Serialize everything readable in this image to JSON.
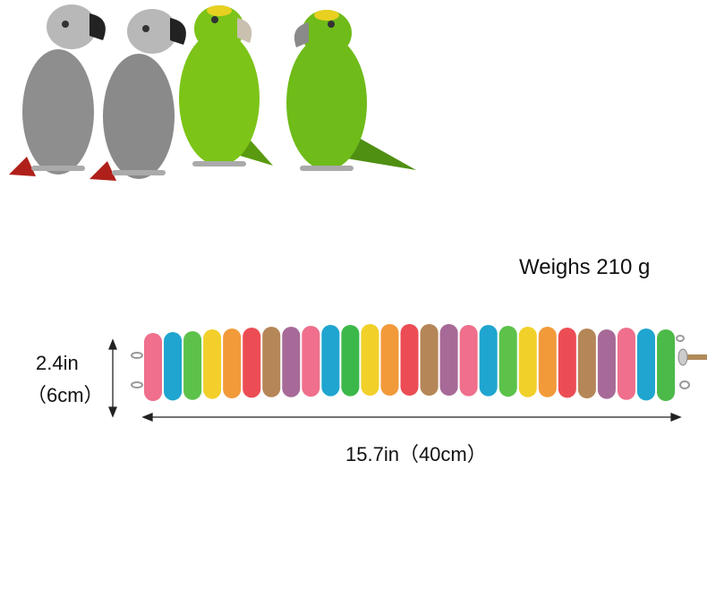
{
  "weight_label": "Weighs 210 g",
  "height_label_in": "2.4in",
  "height_label_cm": "（6cm）",
  "width_label": "15.7in（40cm）",
  "birds": [
    {
      "kind": "grey-parrot",
      "body": "#8e8e8e",
      "beak": "#222222",
      "tail": "#b0201a"
    },
    {
      "kind": "grey-parrot",
      "body": "#8a8a8a",
      "beak": "#222222",
      "tail": "#b0201a"
    },
    {
      "kind": "amazon-parrot",
      "body": "#7cc418",
      "beak": "#c9c0b0",
      "tail": "#5a9a10"
    },
    {
      "kind": "amazon-parrot",
      "body": "#6fbb1a",
      "beak": "#8a8a8a",
      "tail": "#4f8f12"
    }
  ],
  "stick_colors": [
    "#ef6f8c",
    "#1fa5cf",
    "#5cc24a",
    "#f2cf2a",
    "#f29a3a",
    "#ec4d55",
    "#b58657",
    "#a76a98",
    "#ef6f8c",
    "#1fa5cf",
    "#3cb84a",
    "#f2d02a",
    "#f29a3a",
    "#ec4d55",
    "#b58657",
    "#a76a98",
    "#ef6f8c",
    "#1fa5cf",
    "#5cc24a",
    "#f2d02a",
    "#f29a3a",
    "#ec4d55",
    "#b58657",
    "#a76a98",
    "#ef6f8c",
    "#1fa5cf",
    "#4cba48"
  ]
}
